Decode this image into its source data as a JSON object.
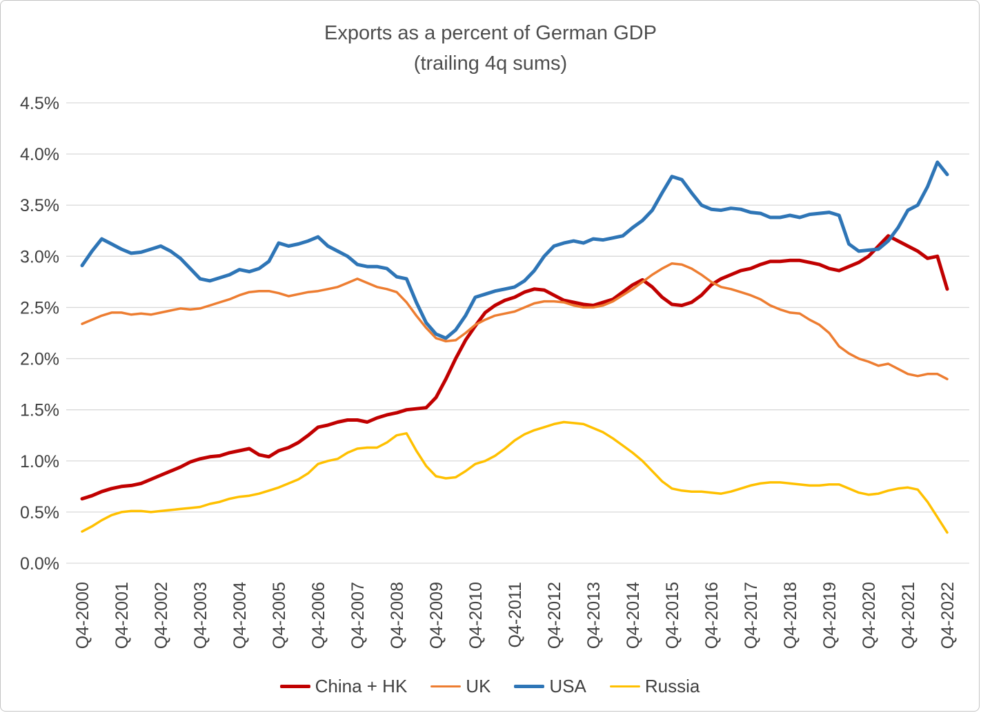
{
  "chart_data": {
    "type": "line",
    "title": "Exports as a percent of German GDP",
    "subtitle": "(trailing 4q sums)",
    "ylim": [
      0,
      4.5
    ],
    "y_tick_labels": [
      "0.0%",
      "0.5%",
      "1.0%",
      "1.5%",
      "2.0%",
      "2.5%",
      "3.0%",
      "3.5%",
      "4.0%",
      "4.5%"
    ],
    "x_tick_labels": [
      "Q4-2000",
      "Q4-2001",
      "Q4-2002",
      "Q4-2003",
      "Q4-2004",
      "Q4-2005",
      "Q4-2006",
      "Q4-2007",
      "Q4-2008",
      "Q4-2009",
      "Q4-2010",
      "Q4-2011",
      "Q4-2012",
      "Q4-2013",
      "Q4-2014",
      "Q4-2015",
      "Q4-2016",
      "Q4-2017",
      "Q4-2018",
      "Q4-2019",
      "Q4-2020",
      "Q4-2021",
      "Q4-2022"
    ],
    "points_per_tick": 4,
    "x_frequency": "quarterly",
    "grid": "horizontal",
    "legend_position": "bottom",
    "colors": {
      "grid": "#d9d9d9",
      "axis_text": "#404040",
      "title_text": "#4d4d4d"
    },
    "series": [
      {
        "name": "China + HK",
        "color": "#c00000",
        "stroke_width": 5,
        "values": [
          0.63,
          0.66,
          0.7,
          0.73,
          0.75,
          0.76,
          0.78,
          0.82,
          0.86,
          0.9,
          0.94,
          0.99,
          1.02,
          1.04,
          1.05,
          1.08,
          1.1,
          1.12,
          1.06,
          1.04,
          1.1,
          1.13,
          1.18,
          1.25,
          1.33,
          1.35,
          1.38,
          1.4,
          1.4,
          1.38,
          1.42,
          1.45,
          1.47,
          1.5,
          1.51,
          1.52,
          1.62,
          1.8,
          2.0,
          2.18,
          2.32,
          2.45,
          2.52,
          2.57,
          2.6,
          2.65,
          2.68,
          2.67,
          2.62,
          2.57,
          2.55,
          2.53,
          2.52,
          2.55,
          2.58,
          2.65,
          2.72,
          2.77,
          2.7,
          2.6,
          2.53,
          2.52,
          2.55,
          2.62,
          2.72,
          2.78,
          2.82,
          2.86,
          2.88,
          2.92,
          2.95,
          2.95,
          2.96,
          2.96,
          2.94,
          2.92,
          2.88,
          2.86,
          2.9,
          2.94,
          3.0,
          3.1,
          3.2,
          3.15,
          3.1,
          3.05,
          2.98,
          3.0,
          2.68
        ]
      },
      {
        "name": "UK",
        "color": "#ed7d31",
        "stroke_width": 3.5,
        "values": [
          2.34,
          2.38,
          2.42,
          2.45,
          2.45,
          2.43,
          2.44,
          2.43,
          2.45,
          2.47,
          2.49,
          2.48,
          2.49,
          2.52,
          2.55,
          2.58,
          2.62,
          2.65,
          2.66,
          2.66,
          2.64,
          2.61,
          2.63,
          2.65,
          2.66,
          2.68,
          2.7,
          2.74,
          2.78,
          2.74,
          2.7,
          2.68,
          2.65,
          2.55,
          2.42,
          2.3,
          2.2,
          2.17,
          2.18,
          2.25,
          2.33,
          2.38,
          2.42,
          2.44,
          2.46,
          2.5,
          2.54,
          2.56,
          2.56,
          2.55,
          2.52,
          2.5,
          2.5,
          2.52,
          2.56,
          2.62,
          2.68,
          2.75,
          2.82,
          2.88,
          2.93,
          2.92,
          2.88,
          2.82,
          2.75,
          2.7,
          2.68,
          2.65,
          2.62,
          2.58,
          2.52,
          2.48,
          2.45,
          2.44,
          2.38,
          2.33,
          2.25,
          2.12,
          2.05,
          2.0,
          1.97,
          1.93,
          1.95,
          1.9,
          1.85,
          1.83,
          1.85,
          1.85,
          1.8
        ]
      },
      {
        "name": "USA",
        "color": "#2e75b6",
        "stroke_width": 5,
        "values": [
          2.91,
          3.05,
          3.17,
          3.12,
          3.07,
          3.03,
          3.04,
          3.07,
          3.1,
          3.05,
          2.98,
          2.88,
          2.78,
          2.76,
          2.79,
          2.82,
          2.87,
          2.85,
          2.88,
          2.95,
          3.13,
          3.1,
          3.12,
          3.15,
          3.19,
          3.1,
          3.05,
          3.0,
          2.92,
          2.9,
          2.9,
          2.88,
          2.8,
          2.78,
          2.55,
          2.35,
          2.24,
          2.2,
          2.28,
          2.42,
          2.6,
          2.63,
          2.66,
          2.68,
          2.7,
          2.76,
          2.86,
          3.0,
          3.1,
          3.13,
          3.15,
          3.13,
          3.17,
          3.16,
          3.18,
          3.2,
          3.28,
          3.35,
          3.45,
          3.62,
          3.78,
          3.75,
          3.62,
          3.5,
          3.46,
          3.45,
          3.47,
          3.46,
          3.43,
          3.42,
          3.38,
          3.38,
          3.4,
          3.38,
          3.41,
          3.42,
          3.43,
          3.4,
          3.12,
          3.05,
          3.06,
          3.07,
          3.15,
          3.28,
          3.45,
          3.5,
          3.68,
          3.92,
          3.8
        ]
      },
      {
        "name": "Russia",
        "color": "#ffc000",
        "stroke_width": 3.5,
        "values": [
          0.31,
          0.36,
          0.42,
          0.47,
          0.5,
          0.51,
          0.51,
          0.5,
          0.51,
          0.52,
          0.53,
          0.54,
          0.55,
          0.58,
          0.6,
          0.63,
          0.65,
          0.66,
          0.68,
          0.71,
          0.74,
          0.78,
          0.82,
          0.88,
          0.97,
          1.0,
          1.02,
          1.08,
          1.12,
          1.13,
          1.13,
          1.18,
          1.25,
          1.27,
          1.1,
          0.95,
          0.85,
          0.83,
          0.84,
          0.9,
          0.97,
          1.0,
          1.05,
          1.12,
          1.2,
          1.26,
          1.3,
          1.33,
          1.36,
          1.38,
          1.37,
          1.36,
          1.32,
          1.28,
          1.22,
          1.15,
          1.08,
          1.0,
          0.9,
          0.8,
          0.73,
          0.71,
          0.7,
          0.7,
          0.69,
          0.68,
          0.7,
          0.73,
          0.76,
          0.78,
          0.79,
          0.79,
          0.78,
          0.77,
          0.76,
          0.76,
          0.77,
          0.77,
          0.73,
          0.69,
          0.67,
          0.68,
          0.71,
          0.73,
          0.74,
          0.72,
          0.6,
          0.45,
          0.3
        ]
      }
    ]
  }
}
